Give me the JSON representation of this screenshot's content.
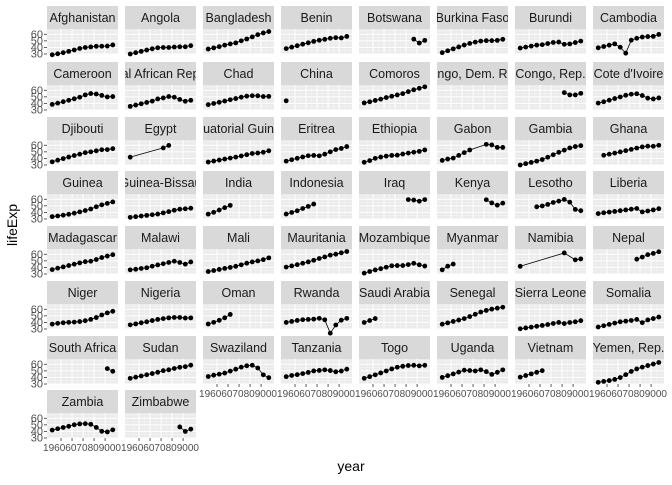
{
  "chart_data": {
    "type": "line",
    "facet": "wrap",
    "markers": true,
    "xlabel": "year",
    "ylabel": "lifeExp",
    "ylim": [
      30,
      68
    ],
    "xlim": [
      1950,
      2009
    ],
    "y_ticks": [
      30,
      40,
      50,
      60
    ],
    "y_tick_labels": [
      "30",
      "40",
      "50",
      "60"
    ],
    "x_ticks": [
      1960,
      1970,
      1980,
      1990,
      2000
    ],
    "x_tick_labels": [
      "1960",
      "1970",
      "1980",
      "1990",
      "2000"
    ],
    "x_axis_text": "19606070809000",
    "grid": true,
    "panel_background": "#ebebeb",
    "strip_background": "#d9d9d9",
    "point_color": "#000000",
    "x": [
      1952,
      1957,
      1962,
      1967,
      1972,
      1977,
      1982,
      1987,
      1992,
      1997,
      2002,
      2007
    ],
    "facets": [
      {
        "name": "Afghanistan",
        "values": [
          28.8,
          30.3,
          32.0,
          34.0,
          36.1,
          38.4,
          39.9,
          40.8,
          41.7,
          41.8,
          42.1,
          43.8
        ]
      },
      {
        "name": "Angola",
        "values": [
          30.0,
          32.0,
          34.0,
          36.0,
          37.9,
          39.5,
          39.9,
          39.9,
          40.6,
          41.0,
          41.0,
          42.7
        ]
      },
      {
        "name": "Bangladesh",
        "values": [
          37.5,
          39.3,
          41.2,
          43.5,
          45.3,
          46.9,
          50.0,
          52.8,
          56.0,
          59.4,
          62.0,
          64.1
        ]
      },
      {
        "name": "Benin",
        "values": [
          38.2,
          40.4,
          42.6,
          44.9,
          47.0,
          49.2,
          50.9,
          52.3,
          53.9,
          54.8,
          54.4,
          56.7
        ]
      },
      {
        "name": "Botswana",
        "values": [
          null,
          null,
          null,
          null,
          null,
          null,
          null,
          null,
          null,
          52.6,
          46.6,
          50.7
        ]
      },
      {
        "name": "Burkina Faso",
        "values": [
          32.0,
          34.9,
          37.8,
          40.7,
          43.6,
          46.1,
          48.1,
          49.6,
          50.3,
          50.3,
          50.7,
          52.3
        ]
      },
      {
        "name": "Burundi",
        "values": [
          39.0,
          40.5,
          42.0,
          43.5,
          44.1,
          45.9,
          47.5,
          48.2,
          44.7,
          45.3,
          47.4,
          49.6
        ]
      },
      {
        "name": "Cambodia",
        "values": [
          39.4,
          41.4,
          43.4,
          45.4,
          40.3,
          31.2,
          51.0,
          53.9,
          55.8,
          56.5,
          56.8,
          59.7
        ]
      },
      {
        "name": "Cameroon",
        "values": [
          38.5,
          40.4,
          42.6,
          44.8,
          47.0,
          49.4,
          53.0,
          55.0,
          54.3,
          52.2,
          49.9,
          50.4
        ]
      },
      {
        "name": "al African Rep",
        "values": [
          35.5,
          37.5,
          39.5,
          41.5,
          43.5,
          46.8,
          48.3,
          50.5,
          49.4,
          46.1,
          43.3,
          44.7
        ]
      },
      {
        "name": "Chad",
        "values": [
          38.1,
          39.9,
          41.7,
          43.6,
          45.6,
          47.4,
          49.5,
          51.1,
          51.7,
          51.6,
          50.5,
          50.7
        ]
      },
      {
        "name": "China",
        "values": [
          44.0,
          null,
          null,
          null,
          null,
          null,
          null,
          null,
          null,
          null,
          null,
          null
        ]
      },
      {
        "name": "Comoros",
        "values": [
          40.7,
          42.5,
          44.5,
          46.5,
          48.9,
          50.9,
          52.9,
          54.9,
          57.9,
          60.7,
          62.97,
          65.2
        ]
      },
      {
        "name": "ongo, Dem. Re",
        "values": [
          null,
          null,
          null,
          null,
          null,
          null,
          null,
          null,
          null,
          null,
          null,
          null
        ]
      },
      {
        "name": "Congo, Rep.",
        "values": [
          null,
          null,
          null,
          null,
          null,
          null,
          null,
          null,
          56.4,
          52.96,
          52.97,
          55.3
        ]
      },
      {
        "name": "Cote d'Ivoire",
        "values": [
          40.5,
          42.5,
          44.9,
          47.4,
          49.8,
          52.4,
          53.98,
          54.7,
          52.0,
          47.99,
          46.8,
          48.3
        ]
      },
      {
        "name": "Djibouti",
        "values": [
          34.8,
          37.3,
          39.7,
          42.1,
          44.4,
          46.5,
          48.8,
          50.0,
          51.6,
          53.2,
          53.4,
          54.8
        ]
      },
      {
        "name": "Egypt",
        "values": [
          41.9,
          null,
          null,
          null,
          null,
          null,
          56.0,
          59.8,
          null,
          null,
          null,
          null
        ]
      },
      {
        "name": "uatorial Guin",
        "values": [
          34.5,
          35.98,
          37.5,
          38.99,
          40.5,
          42.0,
          43.7,
          45.7,
          47.5,
          48.2,
          49.3,
          51.6
        ]
      },
      {
        "name": "Eritrea",
        "values": [
          35.9,
          38.0,
          40.2,
          42.2,
          44.1,
          44.5,
          43.9,
          46.5,
          49.99,
          53.4,
          55.2,
          58.0
        ]
      },
      {
        "name": "Ethiopia",
        "values": [
          34.1,
          36.7,
          40.1,
          42.1,
          43.5,
          44.5,
          44.9,
          46.7,
          48.1,
          49.4,
          50.7,
          52.9
        ]
      },
      {
        "name": "Gabon",
        "values": [
          37.0,
          38.99,
          40.5,
          44.6,
          48.7,
          52.8,
          null,
          null,
          61.4,
          60.5,
          56.8,
          56.7
        ]
      },
      {
        "name": "Gambia",
        "values": [
          30.0,
          32.1,
          33.9,
          35.9,
          38.3,
          41.8,
          45.6,
          49.3,
          52.6,
          55.9,
          58.0,
          59.4
        ]
      },
      {
        "name": "Ghana",
        "values": [
          null,
          44.8,
          46.5,
          48.1,
          49.9,
          51.8,
          53.7,
          55.7,
          57.5,
          58.6,
          58.45,
          60.0
        ]
      },
      {
        "name": "Guinea",
        "values": [
          33.6,
          34.6,
          35.8,
          37.2,
          38.8,
          40.8,
          42.9,
          45.2,
          48.6,
          51.5,
          53.7,
          56.0
        ]
      },
      {
        "name": "Guinea-Bissau",
        "values": [
          32.5,
          33.5,
          34.5,
          35.5,
          36.5,
          37.5,
          39.3,
          41.2,
          43.3,
          44.9,
          45.5,
          46.4
        ]
      },
      {
        "name": "India",
        "values": [
          37.4,
          40.2,
          43.6,
          47.2,
          50.7,
          null,
          null,
          null,
          null,
          null,
          null,
          null
        ]
      },
      {
        "name": "Indonesia",
        "values": [
          37.5,
          39.9,
          42.5,
          46.0,
          49.2,
          52.7,
          null,
          null,
          null,
          null,
          null,
          null
        ]
      },
      {
        "name": "Iraq",
        "values": [
          null,
          null,
          null,
          null,
          null,
          null,
          null,
          null,
          59.5,
          58.8,
          57.0,
          59.5
        ]
      },
      {
        "name": "Kenya",
        "values": [
          null,
          null,
          null,
          null,
          null,
          null,
          null,
          null,
          59.3,
          54.4,
          50.99,
          54.1
        ]
      },
      {
        "name": "Lesotho",
        "values": [
          null,
          null,
          null,
          48.5,
          49.8,
          52.2,
          55.1,
          57.2,
          59.7,
          55.6,
          44.6,
          42.6
        ]
      },
      {
        "name": "Liberia",
        "values": [
          38.2,
          39.5,
          40.5,
          41.5,
          42.6,
          43.8,
          44.9,
          46.0,
          40.8,
          42.2,
          43.8,
          45.7
        ]
      },
      {
        "name": "Madagascar",
        "values": [
          36.7,
          38.9,
          40.8,
          42.9,
          44.9,
          46.9,
          48.7,
          49.4,
          52.0,
          54.98,
          57.3,
          59.4
        ]
      },
      {
        "name": "Malawi",
        "values": [
          36.3,
          37.2,
          38.4,
          39.5,
          41.8,
          43.8,
          45.6,
          47.5,
          49.4,
          47.5,
          45.0,
          48.3
        ]
      },
      {
        "name": "Mali",
        "values": [
          33.7,
          35.3,
          36.9,
          38.5,
          40.0,
          41.7,
          43.9,
          46.4,
          48.4,
          49.9,
          51.8,
          54.5
        ]
      },
      {
        "name": "Mauritania",
        "values": [
          40.5,
          42.3,
          44.2,
          46.3,
          48.4,
          50.9,
          53.6,
          56.0,
          58.7,
          60.1,
          62.2,
          64.2
        ]
      },
      {
        "name": "Mozambique",
        "values": [
          31.3,
          33.8,
          36.2,
          38.1,
          40.3,
          42.5,
          42.8,
          42.9,
          44.3,
          46.3,
          44.0,
          42.1
        ]
      },
      {
        "name": "Myanmar",
        "values": [
          36.3,
          41.9,
          45.1,
          null,
          null,
          null,
          null,
          null,
          null,
          null,
          null,
          null
        ]
      },
      {
        "name": "Namibia",
        "values": [
          41.7,
          null,
          null,
          null,
          null,
          null,
          null,
          null,
          61.99,
          null,
          51.5,
          52.9
        ]
      },
      {
        "name": "Nepal",
        "values": [
          null,
          null,
          null,
          null,
          null,
          null,
          null,
          52.5,
          55.7,
          59.4,
          61.3,
          63.8
        ]
      },
      {
        "name": "Niger",
        "values": [
          37.4,
          38.6,
          39.5,
          40.1,
          40.5,
          41.3,
          42.6,
          44.6,
          47.4,
          51.3,
          54.5,
          56.9
        ]
      },
      {
        "name": "Nigeria",
        "values": [
          36.3,
          37.8,
          39.4,
          41.0,
          42.8,
          44.5,
          45.8,
          46.9,
          47.5,
          47.5,
          46.6,
          46.9
        ]
      },
      {
        "name": "Oman",
        "values": [
          37.6,
          40.1,
          43.2,
          47.0,
          52.1,
          null,
          null,
          null,
          null,
          null,
          null,
          null
        ]
      },
      {
        "name": "Rwanda",
        "values": [
          40.0,
          41.5,
          43.0,
          44.1,
          44.6,
          45.0,
          46.2,
          44.0,
          23.6,
          36.1,
          43.4,
          46.2
        ]
      },
      {
        "name": "Saudi Arabia",
        "values": [
          39.9,
          42.9,
          45.9,
          null,
          null,
          null,
          null,
          null,
          null,
          null,
          null,
          null
        ]
      },
      {
        "name": "Senegal",
        "values": [
          37.3,
          39.3,
          41.5,
          43.6,
          45.8,
          48.9,
          52.4,
          55.8,
          58.2,
          60.2,
          61.6,
          63.1
        ]
      },
      {
        "name": "Sierra Leone",
        "values": [
          30.3,
          31.6,
          32.8,
          34.1,
          35.4,
          36.8,
          38.4,
          40.0,
          38.3,
          39.9,
          41.0,
          42.6
        ]
      },
      {
        "name": "Somalia",
        "values": [
          33.0,
          34.98,
          36.98,
          38.98,
          40.97,
          41.97,
          42.96,
          44.5,
          39.7,
          43.8,
          45.9,
          48.2
        ]
      },
      {
        "name": "South Africa",
        "values": [
          null,
          null,
          null,
          null,
          null,
          null,
          null,
          null,
          null,
          null,
          53.4,
          49.3
        ]
      },
      {
        "name": "Sudan",
        "values": [
          38.6,
          40.4,
          42.2,
          44.0,
          45.9,
          47.8,
          50.3,
          51.6,
          53.6,
          55.4,
          56.4,
          58.6
        ]
      },
      {
        "name": "Swaziland",
        "values": [
          41.4,
          43.4,
          44.99,
          46.6,
          49.6,
          52.5,
          55.6,
          57.7,
          58.5,
          54.3,
          43.9,
          39.6
        ]
      },
      {
        "name": "Tanzania",
        "values": [
          41.2,
          42.97,
          44.2,
          45.8,
          47.6,
          49.9,
          50.6,
          51.5,
          50.4,
          48.5,
          49.7,
          52.5
        ]
      },
      {
        "name": "Togo",
        "values": [
          38.6,
          41.2,
          43.9,
          46.8,
          49.8,
          52.9,
          55.5,
          56.9,
          58.1,
          58.4,
          57.6,
          58.4
        ]
      },
      {
        "name": "Uganda",
        "values": [
          39.98,
          42.6,
          45.3,
          48.1,
          51.0,
          50.4,
          49.8,
          51.5,
          48.8,
          44.6,
          47.8,
          51.5
        ]
      },
      {
        "name": "Vietnam",
        "values": [
          40.4,
          42.9,
          45.4,
          47.8,
          50.3,
          null,
          null,
          null,
          null,
          null,
          null,
          null
        ]
      },
      {
        "name": "Yemen, Rep.",
        "values": [
          32.5,
          33.96,
          35.2,
          36.98,
          39.8,
          44.2,
          49.1,
          52.9,
          55.6,
          58.0,
          60.3,
          62.7
        ]
      },
      {
        "name": "Zambia",
        "values": [
          42.0,
          44.1,
          46.0,
          47.8,
          50.1,
          51.4,
          51.8,
          50.8,
          46.1,
          40.2,
          39.2,
          42.4
        ]
      },
      {
        "name": "Zimbabwe",
        "values": [
          null,
          null,
          null,
          null,
          null,
          null,
          null,
          null,
          null,
          46.8,
          39.99,
          43.5
        ]
      }
    ]
  }
}
